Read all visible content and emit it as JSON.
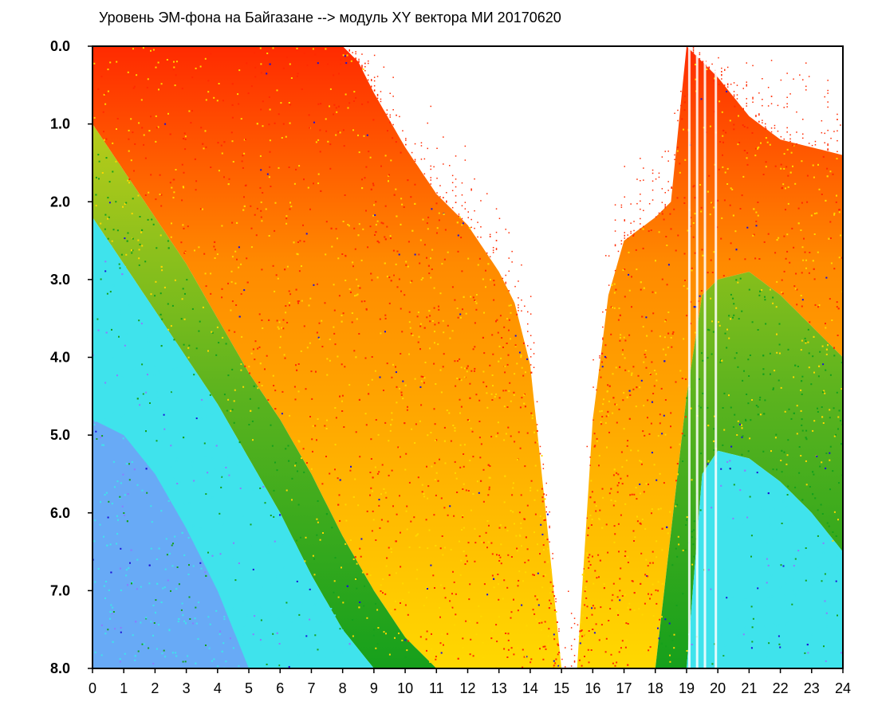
{
  "chart_data": {
    "type": "heatmap",
    "title": "Уровень ЭМ-фона на Байгазане   -->  модуль XY вектора МИ   20170620",
    "xlabel": "",
    "ylabel": "",
    "xlim": [
      0,
      24
    ],
    "ylim": [
      0.0,
      8.0
    ],
    "y_inverted": true,
    "x_ticks": [
      "0",
      "1",
      "2",
      "3",
      "4",
      "5",
      "6",
      "7",
      "8",
      "9",
      "10",
      "11",
      "12",
      "13",
      "14",
      "15",
      "16",
      "17",
      "18",
      "19",
      "20",
      "21",
      "22",
      "23",
      "24"
    ],
    "y_ticks": [
      "0.0",
      "1.0",
      "2.0",
      "3.0",
      "4.0",
      "5.0",
      "6.0",
      "7.0",
      "8.0"
    ],
    "grid": false,
    "legend": "none",
    "color_scale": [
      "#ff2a00",
      "#ffd800",
      "#16a01c",
      "#3fe3ec",
      "#8a7cff",
      "#1a10d8"
    ],
    "gap_top_edge": {
      "hours": [
        0,
        1,
        2,
        3,
        4,
        5,
        6,
        7,
        8,
        8.5,
        9,
        10,
        11,
        12,
        12.5,
        13,
        13.5,
        14,
        14.5,
        15,
        15.5,
        16,
        16.5,
        17,
        18,
        18.5,
        19,
        19.5,
        20,
        21,
        22,
        23,
        24
      ],
      "values": [
        0.0,
        0.0,
        0.0,
        0.0,
        0.0,
        0.0,
        0.0,
        0.0,
        0.0,
        0.2,
        0.6,
        1.3,
        1.9,
        2.3,
        2.6,
        2.9,
        3.3,
        4.1,
        6.0,
        8.0,
        8.0,
        4.8,
        3.2,
        2.5,
        2.2,
        2.0,
        0.0,
        0.2,
        0.4,
        0.9,
        1.2,
        1.3,
        1.4
      ]
    },
    "green_boundary": {
      "hours": [
        0,
        1,
        2,
        3,
        4,
        5,
        6,
        7,
        8,
        9,
        10,
        11,
        12,
        13,
        14,
        14.5,
        15.5,
        16,
        17,
        18,
        19,
        19.5,
        20,
        21,
        22,
        23,
        24
      ],
      "values": [
        1.0,
        1.6,
        2.2,
        2.8,
        3.5,
        4.2,
        4.8,
        5.5,
        6.3,
        7.0,
        7.6,
        8.0,
        8.0,
        8.0,
        8.0,
        8.0,
        8.0,
        8.0,
        8.0,
        8.0,
        4.5,
        3.2,
        3.0,
        2.9,
        3.2,
        3.6,
        4.0
      ]
    },
    "cyan_boundary": {
      "hours": [
        0,
        1,
        2,
        3,
        4,
        5,
        6,
        7,
        8,
        9,
        9.5,
        10,
        19,
        19.5,
        20,
        21,
        22,
        23,
        24
      ],
      "values": [
        2.2,
        2.8,
        3.4,
        4.0,
        4.6,
        5.3,
        6.0,
        6.8,
        7.5,
        8.0,
        8.0,
        8.0,
        8.0,
        5.5,
        5.2,
        5.3,
        5.6,
        6.0,
        6.5
      ]
    },
    "violet_region": {
      "hours": [
        0,
        1,
        2,
        3,
        4,
        5
      ],
      "values": [
        4.8,
        5.0,
        5.5,
        6.2,
        7.0,
        8.0
      ]
    }
  }
}
